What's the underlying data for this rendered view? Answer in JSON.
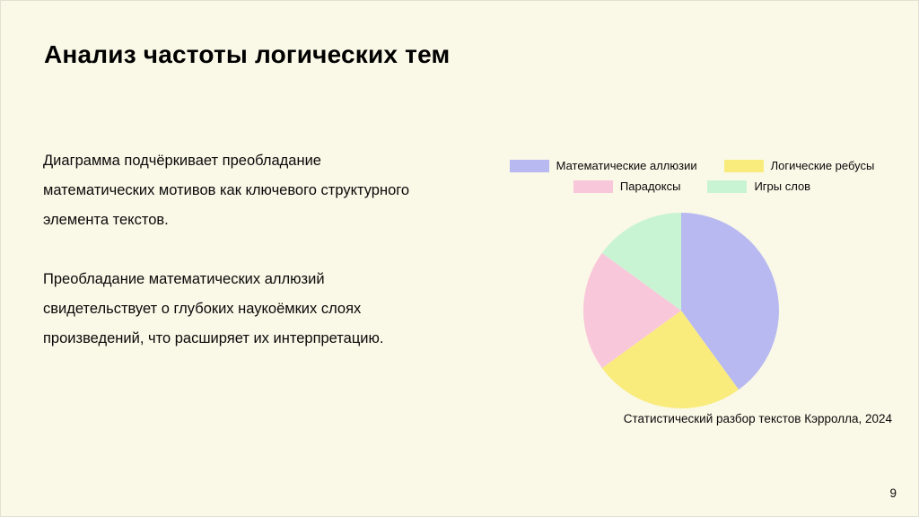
{
  "slide": {
    "title": "Анализ частоты логических тем",
    "page_number": "9",
    "background": "#FAF8E7"
  },
  "body": {
    "paragraph1": "Диаграмма подчёркивает преобладание математических мотивов как ключевого структурного элемента текстов.",
    "paragraph2": "Преобладание математических аллюзий свидетельствует о глубоких наукоёмких слоях произведений, что расширяет их интерпретацию."
  },
  "chart_data": {
    "type": "pie",
    "title": "",
    "categories": [
      "Математические аллюзии",
      "Логические ребусы",
      "Парадоксы",
      "Игры слов"
    ],
    "values": [
      40,
      25,
      20,
      15
    ],
    "colors": [
      "#B8B9F1",
      "#F9EC7D",
      "#F9C7DA",
      "#C9F4D4"
    ],
    "start_angle": "top",
    "direction": "clockwise",
    "legend_position": "top",
    "legend_columns": 2,
    "caption": "Статистический разбор текстов Кэрролла, 2024"
  }
}
